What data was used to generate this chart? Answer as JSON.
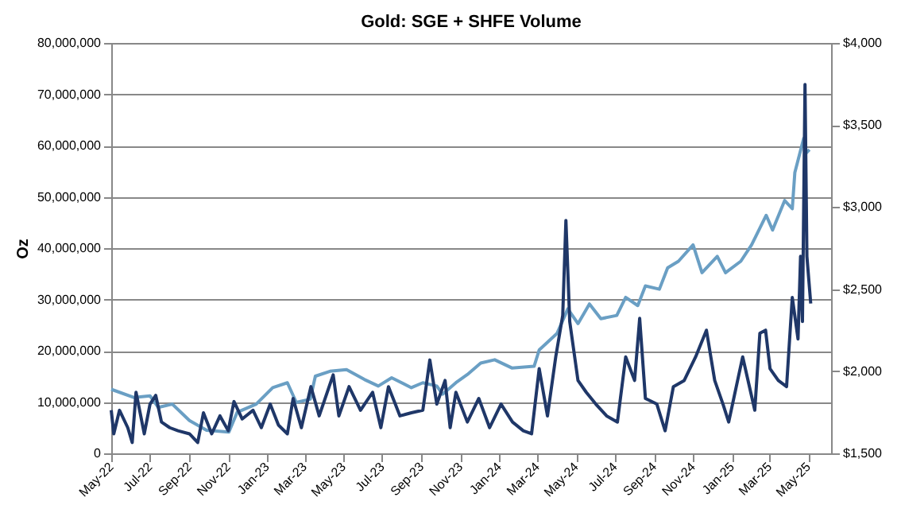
{
  "chart_data": {
    "type": "line",
    "title": "Gold: SGE + SHFE Volume",
    "ylabel": "Oz",
    "xlim": [
      "2022-05-01",
      "2025-06-06"
    ],
    "xticks": [
      {
        "value": "2022-05-01",
        "label": "May-22"
      },
      {
        "value": "2022-07-01",
        "label": "Jul-22"
      },
      {
        "value": "2022-09-01",
        "label": "Sep-22"
      },
      {
        "value": "2022-11-01",
        "label": "Nov-22"
      },
      {
        "value": "2023-01-01",
        "label": "Jan-23"
      },
      {
        "value": "2023-03-01",
        "label": "Mar-23"
      },
      {
        "value": "2023-05-01",
        "label": "May-23"
      },
      {
        "value": "2023-07-01",
        "label": "Jul-23"
      },
      {
        "value": "2023-09-01",
        "label": "Sep-23"
      },
      {
        "value": "2023-11-01",
        "label": "Nov-23"
      },
      {
        "value": "2024-01-01",
        "label": "Jan-24"
      },
      {
        "value": "2024-03-01",
        "label": "Mar-24"
      },
      {
        "value": "2024-05-01",
        "label": "May-24"
      },
      {
        "value": "2024-07-01",
        "label": "Jul-24"
      },
      {
        "value": "2024-09-01",
        "label": "Sep-24"
      },
      {
        "value": "2024-11-01",
        "label": "Nov-24"
      },
      {
        "value": "2025-01-01",
        "label": "Jan-25"
      },
      {
        "value": "2025-03-01",
        "label": "Mar-25"
      },
      {
        "value": "2025-05-01",
        "label": "May-25"
      }
    ],
    "ylim": [
      0,
      80000000
    ],
    "yticks": [
      {
        "value": 0,
        "label": "0"
      },
      {
        "value": 10000000,
        "label": "10,000,000"
      },
      {
        "value": 20000000,
        "label": "20,000,000"
      },
      {
        "value": 30000000,
        "label": "30,000,000"
      },
      {
        "value": 40000000,
        "label": "40,000,000"
      },
      {
        "value": 50000000,
        "label": "50,000,000"
      },
      {
        "value": 60000000,
        "label": "60,000,000"
      },
      {
        "value": 70000000,
        "label": "70,000,000"
      },
      {
        "value": 80000000,
        "label": "80,000,000"
      }
    ],
    "y2lim": [
      1500,
      4000
    ],
    "y2ticks": [
      {
        "value": 1500,
        "label": "$1,500"
      },
      {
        "value": 2000,
        "label": "$2,000"
      },
      {
        "value": 2500,
        "label": "$2,500"
      },
      {
        "value": 3000,
        "label": "$3,000"
      },
      {
        "value": 3500,
        "label": "$3,500"
      },
      {
        "value": 4000,
        "label": "$4,000"
      }
    ],
    "grid": "y",
    "marker": "none",
    "line_style": "solid",
    "series": [
      {
        "color": "#6a9fc4",
        "axis": "y2",
        "x": [
          "2022-05-01",
          "2022-06-06",
          "2022-07-01",
          "2022-07-14",
          "2022-08-05",
          "2022-09-01",
          "2022-09-28",
          "2022-11-02",
          "2022-11-15",
          "2022-12-15",
          "2023-01-10",
          "2023-02-02",
          "2023-02-16",
          "2023-03-10",
          "2023-03-18",
          "2023-04-10",
          "2023-05-06",
          "2023-06-03",
          "2023-06-25",
          "2023-07-16",
          "2023-08-16",
          "2023-09-03",
          "2023-09-25",
          "2023-10-04",
          "2023-10-25",
          "2023-11-12",
          "2023-12-03",
          "2023-12-25",
          "2024-01-21",
          "2024-02-25",
          "2024-03-04",
          "2024-04-01",
          "2024-04-18",
          "2024-05-04",
          "2024-05-22",
          "2024-06-09",
          "2024-07-04",
          "2024-07-18",
          "2024-08-06",
          "2024-08-18",
          "2024-09-09",
          "2024-09-22",
          "2024-10-09",
          "2024-11-01",
          "2024-11-15",
          "2024-12-09",
          "2024-12-22",
          "2025-01-15",
          "2025-02-01",
          "2025-02-24",
          "2025-03-06",
          "2025-03-25",
          "2025-04-06",
          "2025-04-10",
          "2025-04-24",
          "2025-04-28",
          "2025-05-03"
        ],
        "values": [
          1890,
          1840,
          1850,
          1780,
          1800,
          1700,
          1640,
          1630,
          1750,
          1800,
          1900,
          1930,
          1810,
          1830,
          1970,
          2000,
          2010,
          1950,
          1910,
          1960,
          1900,
          1930,
          1910,
          1860,
          1930,
          1980,
          2050,
          2070,
          2020,
          2030,
          2130,
          2230,
          2380,
          2290,
          2410,
          2320,
          2340,
          2450,
          2400,
          2520,
          2500,
          2630,
          2670,
          2770,
          2600,
          2700,
          2600,
          2670,
          2770,
          2950,
          2860,
          3040,
          2990,
          3210,
          3420,
          3330,
          3350
        ]
      },
      {
        "color": "#1f3768",
        "axis": "y",
        "x": [
          "2022-05-01",
          "2022-05-05",
          "2022-05-14",
          "2022-05-27",
          "2022-06-03",
          "2022-06-09",
          "2022-06-22",
          "2022-07-01",
          "2022-07-10",
          "2022-07-19",
          "2022-08-01",
          "2022-08-14",
          "2022-09-01",
          "2022-09-14",
          "2022-09-23",
          "2022-10-06",
          "2022-10-19",
          "2022-11-01",
          "2022-11-10",
          "2022-11-23",
          "2022-12-10",
          "2022-12-23",
          "2023-01-06",
          "2023-01-19",
          "2023-02-02",
          "2023-02-11",
          "2023-02-24",
          "2023-03-11",
          "2023-03-24",
          "2023-04-15",
          "2023-04-24",
          "2023-05-10",
          "2023-05-28",
          "2023-06-16",
          "2023-06-29",
          "2023-07-11",
          "2023-07-29",
          "2023-08-16",
          "2023-09-03",
          "2023-09-14",
          "2023-09-25",
          "2023-10-08",
          "2023-10-16",
          "2023-10-25",
          "2023-11-12",
          "2023-11-30",
          "2023-12-17",
          "2024-01-04",
          "2024-01-22",
          "2024-02-08",
          "2024-02-21",
          "2024-03-04",
          "2024-03-17",
          "2024-03-30",
          "2024-04-10",
          "2024-04-15",
          "2024-04-21",
          "2024-05-04",
          "2024-05-17",
          "2024-06-01",
          "2024-06-18",
          "2024-07-05",
          "2024-07-18",
          "2024-08-01",
          "2024-08-09",
          "2024-08-18",
          "2024-09-05",
          "2024-09-18",
          "2024-10-01",
          "2024-10-18",
          "2024-11-05",
          "2024-11-22",
          "2024-12-05",
          "2024-12-18",
          "2024-12-27",
          "2025-01-10",
          "2025-01-18",
          "2025-02-06",
          "2025-02-14",
          "2025-02-23",
          "2025-03-02",
          "2025-03-15",
          "2025-03-28",
          "2025-04-06",
          "2025-04-15",
          "2025-04-19",
          "2025-04-22",
          "2025-04-26",
          "2025-04-29",
          "2025-05-05"
        ],
        "values": [
          8400000,
          3800000,
          8400000,
          5000000,
          2100000,
          11900000,
          3800000,
          9600000,
          11300000,
          6100000,
          5000000,
          4400000,
          3800000,
          2100000,
          7900000,
          3800000,
          7300000,
          4400000,
          10100000,
          6700000,
          8400000,
          5000000,
          9600000,
          5500000,
          3800000,
          10700000,
          5000000,
          13000000,
          7300000,
          15300000,
          7300000,
          13000000,
          8400000,
          11900000,
          5000000,
          13000000,
          7300000,
          7900000,
          8400000,
          18200000,
          9600000,
          14200000,
          5000000,
          11900000,
          6100000,
          10700000,
          5000000,
          9600000,
          6100000,
          4400000,
          3800000,
          16500000,
          7300000,
          18800000,
          26900000,
          45400000,
          25700000,
          14200000,
          11900000,
          9600000,
          7300000,
          6100000,
          18800000,
          14200000,
          26300000,
          10700000,
          9600000,
          4400000,
          13000000,
          14200000,
          18800000,
          24000000,
          14200000,
          9600000,
          6100000,
          14200000,
          18800000,
          8400000,
          23400000,
          24000000,
          16500000,
          14200000,
          13000000,
          30400000,
          22300000,
          38400000,
          25700000,
          71900000,
          38400000,
          29200000
        ]
      }
    ]
  }
}
